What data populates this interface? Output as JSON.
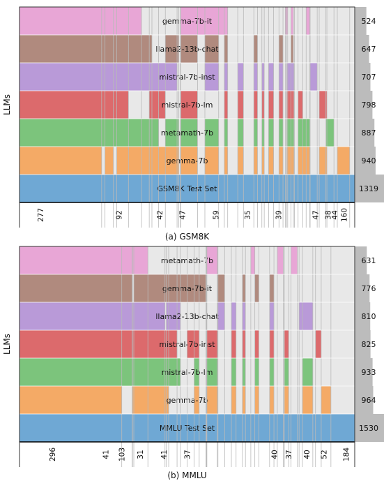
{
  "chart_data": [
    {
      "type": "upset-coverage",
      "panel_caption": "(a) GSM8K",
      "ylabel": "LLMs",
      "rows": [
        {
          "name": "gemma-7b-it",
          "total": 524,
          "color": "#e8a6d6",
          "segments": [
            [
              0,
              0.364
            ],
            [
              0.481,
              0.621
            ],
            [
              0.793,
              0.8
            ],
            [
              0.81,
              0.817
            ],
            [
              0.855,
              0.866
            ]
          ]
        },
        {
          "name": "llama2-13b-chat",
          "total": 647,
          "color": "#b08a7e",
          "segments": [
            [
              0,
              0.395
            ],
            [
              0.435,
              0.475
            ],
            [
              0.481,
              0.531
            ],
            [
              0.553,
              0.594
            ],
            [
              0.611,
              0.621
            ],
            [
              0.699,
              0.71
            ],
            [
              0.774,
              0.786
            ],
            [
              0.81,
              0.817
            ]
          ]
        },
        {
          "name": "mistral-7b-inst",
          "total": 707,
          "color": "#b99ad8",
          "segments": [
            [
              0,
              0.47
            ],
            [
              0.553,
              0.594
            ],
            [
              0.611,
              0.621
            ],
            [
              0.651,
              0.668
            ],
            [
              0.699,
              0.71
            ],
            [
              0.723,
              0.73
            ],
            [
              0.743,
              0.758
            ],
            [
              0.774,
              0.786
            ],
            [
              0.797,
              0.82
            ],
            [
              0.867,
              0.888
            ]
          ]
        },
        {
          "name": "mistral-7b-lm",
          "total": 798,
          "color": "#dc6a6c",
          "segments": [
            [
              0,
              0.325
            ],
            [
              0.387,
              0.435
            ],
            [
              0.48,
              0.531
            ],
            [
              0.611,
              0.621
            ],
            [
              0.651,
              0.668
            ],
            [
              0.699,
              0.71
            ],
            [
              0.723,
              0.73
            ],
            [
              0.743,
              0.758
            ],
            [
              0.774,
              0.786
            ],
            [
              0.797,
              0.82
            ],
            [
              0.831,
              0.845
            ],
            [
              0.894,
              0.917
            ]
          ]
        },
        {
          "name": "metamath-7b",
          "total": 887,
          "color": "#7cc47c",
          "segments": [
            [
              0,
              0.415
            ],
            [
              0.435,
              0.475
            ],
            [
              0.48,
              0.531
            ],
            [
              0.553,
              0.594
            ],
            [
              0.611,
              0.621
            ],
            [
              0.651,
              0.668
            ],
            [
              0.699,
              0.71
            ],
            [
              0.723,
              0.73
            ],
            [
              0.743,
              0.758
            ],
            [
              0.774,
              0.786
            ],
            [
              0.797,
              0.82
            ],
            [
              0.831,
              0.866
            ],
            [
              0.914,
              0.938
            ]
          ]
        },
        {
          "name": "gemma-7b",
          "total": 940,
          "color": "#f4aa66",
          "segments": [
            [
              0,
              0.245
            ],
            [
              0.255,
              0.28
            ],
            [
              0.29,
              0.475
            ],
            [
              0.481,
              0.531
            ],
            [
              0.553,
              0.594
            ],
            [
              0.611,
              0.621
            ],
            [
              0.651,
              0.668
            ],
            [
              0.699,
              0.71
            ],
            [
              0.723,
              0.73
            ],
            [
              0.743,
              0.758
            ],
            [
              0.774,
              0.786
            ],
            [
              0.797,
              0.82
            ],
            [
              0.831,
              0.866
            ],
            [
              0.894,
              0.917
            ],
            [
              0.948,
              0.985
            ]
          ]
        }
      ],
      "reference": {
        "name": "GSM8K Test Set",
        "total": 1319,
        "color": "#6fa8d4"
      },
      "intersection_labels": [
        {
          "pos": 0.062,
          "value": "277"
        },
        {
          "pos": 0.296,
          "value": "92"
        },
        {
          "pos": 0.418,
          "value": "42"
        },
        {
          "pos": 0.485,
          "value": "47"
        },
        {
          "pos": 0.585,
          "value": "59"
        },
        {
          "pos": 0.68,
          "value": "35"
        },
        {
          "pos": 0.772,
          "value": "39"
        },
        {
          "pos": 0.883,
          "value": "47"
        },
        {
          "pos": 0.92,
          "value": "38"
        },
        {
          "pos": 0.94,
          "value": "44"
        },
        {
          "pos": 0.968,
          "value": "160"
        }
      ],
      "xmax": 1.0
    },
    {
      "type": "upset-coverage",
      "panel_caption": "(b) MMLU",
      "ylabel": "LLMs",
      "rows": [
        {
          "name": "metamath-7b",
          "total": 631,
          "color": "#e8a6d6",
          "segments": [
            [
              0,
              0.383
            ],
            [
              0.558,
              0.592
            ],
            [
              0.69,
              0.702
            ],
            [
              0.769,
              0.787
            ],
            [
              0.81,
              0.829
            ]
          ]
        },
        {
          "name": "gemma-7b-it",
          "total": 776,
          "color": "#b08a7e",
          "segments": [
            [
              0,
              0.336
            ],
            [
              0.341,
              0.556
            ],
            [
              0.59,
              0.612
            ],
            [
              0.665,
              0.674
            ],
            [
              0.702,
              0.714
            ],
            [
              0.746,
              0.759
            ]
          ]
        },
        {
          "name": "llama2-13b-chat",
          "total": 810,
          "color": "#b99ad8",
          "segments": [
            [
              0,
              0.434
            ],
            [
              0.438,
              0.48
            ],
            [
              0.59,
              0.612
            ],
            [
              0.632,
              0.646
            ],
            [
              0.665,
              0.674
            ],
            [
              0.746,
              0.759
            ],
            [
              0.834,
              0.875
            ]
          ]
        },
        {
          "name": "mistral-7b-inst",
          "total": 825,
          "color": "#dc6a6c",
          "segments": [
            [
              0,
              0.47
            ],
            [
              0.5,
              0.536
            ],
            [
              0.559,
              0.592
            ],
            [
              0.632,
              0.646
            ],
            [
              0.665,
              0.674
            ],
            [
              0.702,
              0.714
            ],
            [
              0.746,
              0.759
            ],
            [
              0.79,
              0.803
            ],
            [
              0.883,
              0.9
            ]
          ]
        },
        {
          "name": "mistral-7b-lm",
          "total": 933,
          "color": "#7cc47c",
          "segments": [
            [
              0,
              0.48
            ],
            [
              0.521,
              0.536
            ],
            [
              0.559,
              0.592
            ],
            [
              0.632,
              0.646
            ],
            [
              0.665,
              0.674
            ],
            [
              0.702,
              0.714
            ],
            [
              0.746,
              0.759
            ],
            [
              0.79,
              0.803
            ],
            [
              0.844,
              0.875
            ]
          ]
        },
        {
          "name": "gemma-7b",
          "total": 964,
          "color": "#f4aa66",
          "segments": [
            [
              0,
              0.305
            ],
            [
              0.337,
              0.445
            ],
            [
              0.521,
              0.536
            ],
            [
              0.559,
              0.592
            ],
            [
              0.632,
              0.646
            ],
            [
              0.665,
              0.674
            ],
            [
              0.702,
              0.714
            ],
            [
              0.746,
              0.759
            ],
            [
              0.79,
              0.803
            ],
            [
              0.844,
              0.875
            ],
            [
              0.9,
              0.929
            ]
          ]
        }
      ],
      "reference": {
        "name": "MMLU Test Set",
        "total": 1530,
        "color": "#6fa8d4"
      },
      "intersection_labels": [
        {
          "pos": 0.098,
          "value": "296"
        },
        {
          "pos": 0.257,
          "value": "41"
        },
        {
          "pos": 0.305,
          "value": "103"
        },
        {
          "pos": 0.36,
          "value": "31"
        },
        {
          "pos": 0.43,
          "value": "41"
        },
        {
          "pos": 0.5,
          "value": "37"
        },
        {
          "pos": 0.76,
          "value": "40"
        },
        {
          "pos": 0.803,
          "value": "37"
        },
        {
          "pos": 0.857,
          "value": "40"
        },
        {
          "pos": 0.908,
          "value": "52"
        },
        {
          "pos": 0.974,
          "value": "184"
        }
      ],
      "xmax": 1.0
    }
  ]
}
